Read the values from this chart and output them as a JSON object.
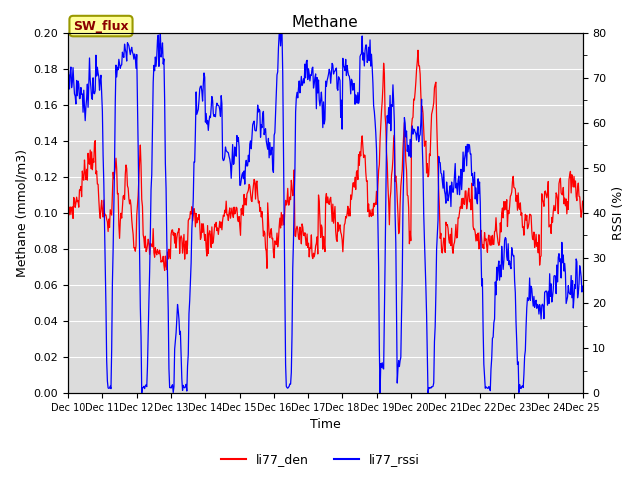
{
  "title": "Methane",
  "ylabel_left": "Methane (mmol/m3)",
  "ylabel_right": "RSSI (%)",
  "xlabel": "Time",
  "ylim_left": [
    0.0,
    0.2
  ],
  "ylim_right": [
    0,
    80
  ],
  "yticks_left": [
    0.0,
    0.02,
    0.04,
    0.06,
    0.08,
    0.1,
    0.12,
    0.14,
    0.16,
    0.18,
    0.2
  ],
  "yticks_right": [
    0,
    10,
    20,
    30,
    40,
    50,
    60,
    70,
    80
  ],
  "xtick_labels": [
    "Dec 10",
    "Dec 11",
    "Dec 12",
    "Dec 13",
    "Dec 14",
    "Dec 15",
    "Dec 16",
    "Dec 17",
    "Dec 18",
    "Dec 19",
    "Dec 20",
    "Dec 21",
    "Dec 22",
    "Dec 23",
    "Dec 24",
    "Dec 25"
  ],
  "color_red": "#FF0000",
  "color_blue": "#0000FF",
  "bg_color": "#DCDCDC",
  "legend_labels": [
    "li77_den",
    "li77_rssi"
  ],
  "sw_flux_label": "SW_flux",
  "sw_flux_bg": "#FFFF99",
  "sw_flux_border": "#999900"
}
